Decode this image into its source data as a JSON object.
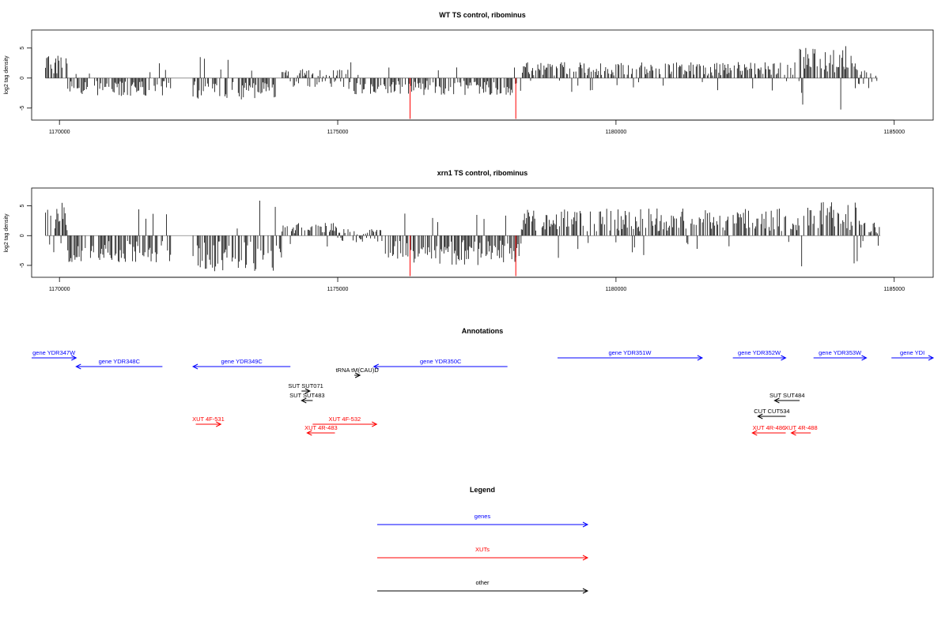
{
  "colors": {
    "gene": "#0000ff",
    "xut": "#ff0000",
    "other": "#000000",
    "bar": "#000000",
    "highlight": "#ff0000",
    "baseline": "#808080"
  },
  "chart_data": [
    {
      "type": "bar",
      "title": "WT TS control, ribominus",
      "ylabel": "log2 tag density",
      "xlim": [
        1169500,
        1185700
      ],
      "ylim": [
        -7,
        8
      ],
      "xticks": [
        "1170000",
        "1175000",
        "1180000",
        "1185000"
      ],
      "yticks": [
        "-5",
        "0",
        "5"
      ],
      "highlight_positions": [
        1176300,
        1178200
      ],
      "highlight_value": -6.8,
      "segments": [
        {
          "start": 1169750,
          "end": 1170150,
          "sign": 1,
          "mean": 2.2
        },
        {
          "start": 1170150,
          "end": 1172000,
          "sign": -1,
          "mean": 1.6
        },
        {
          "start": 1172400,
          "end": 1173900,
          "sign": -1,
          "mean": 1.9
        },
        {
          "start": 1174000,
          "end": 1175200,
          "sign": 0,
          "mean": 0.8
        },
        {
          "start": 1175200,
          "end": 1178300,
          "sign": -1,
          "mean": 1.5
        },
        {
          "start": 1178300,
          "end": 1183300,
          "sign": 1,
          "mean": 1.4
        },
        {
          "start": 1183300,
          "end": 1184300,
          "sign": 1,
          "mean": 2.8
        },
        {
          "start": 1184300,
          "end": 1184700,
          "sign": 0,
          "mean": 0.9
        }
      ]
    },
    {
      "type": "bar",
      "title": "xrn1 TS control, ribominus",
      "ylabel": "log2 tag density",
      "xlim": [
        1169500,
        1185700
      ],
      "ylim": [
        -7,
        8
      ],
      "xticks": [
        "1170000",
        "1175000",
        "1180000",
        "1185000"
      ],
      "yticks": [
        "-5",
        "0",
        "5"
      ],
      "highlight_positions": [
        1176300,
        1178200
      ],
      "highlight_value": -6.8,
      "segments": [
        {
          "start": 1169750,
          "end": 1170150,
          "sign": 1,
          "mean": 3.0
        },
        {
          "start": 1170150,
          "end": 1172000,
          "sign": -1,
          "mean": 2.4
        },
        {
          "start": 1172400,
          "end": 1174000,
          "sign": -1,
          "mean": 3.2
        },
        {
          "start": 1174000,
          "end": 1175000,
          "sign": 1,
          "mean": 1.2
        },
        {
          "start": 1175000,
          "end": 1175800,
          "sign": 0,
          "mean": 0.6
        },
        {
          "start": 1175800,
          "end": 1178300,
          "sign": -1,
          "mean": 2.6
        },
        {
          "start": 1178300,
          "end": 1183300,
          "sign": 1,
          "mean": 2.4
        },
        {
          "start": 1183300,
          "end": 1184400,
          "sign": 1,
          "mean": 3.2
        },
        {
          "start": 1184400,
          "end": 1184750,
          "sign": 1,
          "mean": 1.2
        }
      ]
    }
  ],
  "annotations": {
    "title": "Annotations",
    "features": [
      {
        "label": "gene YDR347W",
        "kind": "gene",
        "from": 1169300,
        "to": 1170300,
        "row": 0
      },
      {
        "label": "gene YDR348C",
        "kind": "gene",
        "from": 1171850,
        "to": 1170300,
        "row": 1
      },
      {
        "label": "gene YDR349C",
        "kind": "gene",
        "from": 1174150,
        "to": 1172400,
        "row": 1
      },
      {
        "label": "gene YDR350C",
        "kind": "gene",
        "from": 1178050,
        "to": 1175650,
        "row": 1
      },
      {
        "label": "gene YDR351W",
        "kind": "gene",
        "from": 1178950,
        "to": 1181550,
        "row": 0
      },
      {
        "label": "gene YDR352W",
        "kind": "gene",
        "from": 1182100,
        "to": 1183050,
        "row": 0
      },
      {
        "label": "gene YDR353W",
        "kind": "gene",
        "from": 1183550,
        "to": 1184500,
        "row": 0
      },
      {
        "label": "gene YDI",
        "kind": "gene",
        "from": 1184950,
        "to": 1185700,
        "row": 0
      },
      {
        "label": "tRNA tM(CAU)D",
        "kind": "other",
        "from": 1175300,
        "to": 1175400,
        "row": 2
      },
      {
        "label": "SUT SUT071",
        "kind": "other",
        "from": 1174350,
        "to": 1174500,
        "row": 3
      },
      {
        "label": "SUT SUT483",
        "kind": "other",
        "from": 1174550,
        "to": 1174350,
        "row": 4
      },
      {
        "label": "SUT SUT484",
        "kind": "other",
        "from": 1183300,
        "to": 1182850,
        "row": 4
      },
      {
        "label": "CUT CUT534",
        "kind": "other",
        "from": 1183050,
        "to": 1182550,
        "row": 5
      },
      {
        "label": "XUT 4F-531",
        "kind": "xut",
        "from": 1172450,
        "to": 1172900,
        "row": 6
      },
      {
        "label": "XUT 4F-532",
        "kind": "xut",
        "from": 1174550,
        "to": 1175700,
        "row": 6
      },
      {
        "label": "XUT 4R-483",
        "kind": "xut",
        "from": 1174950,
        "to": 1174450,
        "row": 7
      },
      {
        "label": "XUT 4R-486",
        "kind": "xut",
        "from": 1183050,
        "to": 1182450,
        "row": 7
      },
      {
        "label": "XUT 4R-488",
        "kind": "xut",
        "from": 1183500,
        "to": 1183150,
        "row": 7
      }
    ]
  },
  "legend": {
    "title": "Legend",
    "items": [
      {
        "label": "genes",
        "kind": "gene"
      },
      {
        "label": "XUTs",
        "kind": "xut"
      },
      {
        "label": "other",
        "kind": "other"
      }
    ]
  }
}
